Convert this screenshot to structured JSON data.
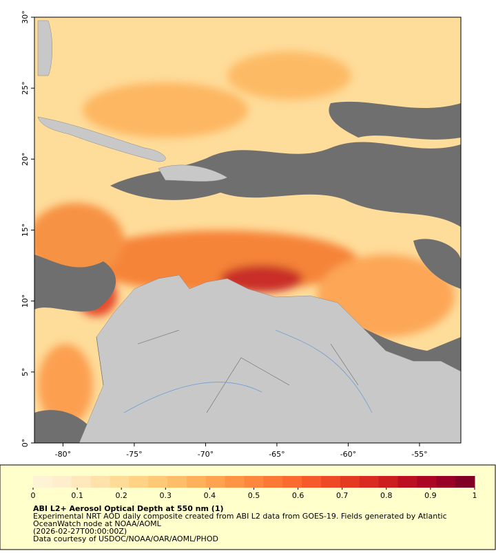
{
  "map": {
    "xlim": [
      -82,
      -52.1
    ],
    "ylim": [
      0,
      30
    ],
    "lon_ticks": [
      {
        "value": -80,
        "label": "-80°"
      },
      {
        "value": -75,
        "label": "-75°"
      },
      {
        "value": -70,
        "label": "-70°"
      },
      {
        "value": -65,
        "label": "-65°"
      },
      {
        "value": -60,
        "label": "-60°"
      },
      {
        "value": -55,
        "label": "-55°"
      }
    ],
    "lat_ticks": [
      {
        "value": 0,
        "label": "0°"
      },
      {
        "value": 5,
        "label": "5°"
      },
      {
        "value": 10,
        "label": "10°"
      },
      {
        "value": 15,
        "label": "15°"
      },
      {
        "value": 20,
        "label": "20°"
      },
      {
        "value": 25,
        "label": "25°"
      },
      {
        "value": 30,
        "label": "30°"
      }
    ]
  },
  "colorbar": {
    "range": [
      0,
      1
    ],
    "ticks": [
      0,
      0.1,
      0.2,
      0.3,
      0.4,
      0.5,
      0.6,
      0.7,
      0.8,
      0.9,
      1
    ],
    "colors": [
      "#fff3d6",
      "#ffeecb",
      "#ffe8bb",
      "#ffe2ab",
      "#ffdb98",
      "#ffd285",
      "#fec876",
      "#febd68",
      "#feb05b",
      "#fea350",
      "#fd9545",
      "#fd873d",
      "#fc7835",
      "#fb6a2f",
      "#f65a2a",
      "#ee4a25",
      "#e43a22",
      "#d92b1f",
      "#cc1d1f",
      "#bd0f22",
      "#ac0625",
      "#980026",
      "#800026"
    ]
  },
  "caption": {
    "title": "ABI L2+ Aerosol Optical Depth at 550 nm (1)",
    "lines": [
      "Experimental NRT AOD daily composite created from ABI L2 data from GOES-19. Fields generated by Atlantic",
      "OceanWatch node at NOAA/AOML",
      "(2026-02-27T00:00:00Z)",
      "Data courtesy of USDOC/NOAA/OAR/AOML/PHOD"
    ]
  }
}
